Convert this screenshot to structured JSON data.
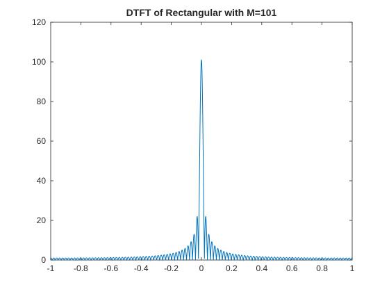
{
  "chart_data": {
    "type": "line",
    "title": "DTFT of Rectangular with M=101",
    "xlabel": "",
    "ylabel": "",
    "xlim": [
      -1,
      1
    ],
    "ylim": [
      0,
      120
    ],
    "xticks": [
      -1,
      -0.8,
      -0.6,
      -0.4,
      -0.2,
      0,
      0.2,
      0.4,
      0.6,
      0.8,
      1
    ],
    "xtick_labels": [
      "-1",
      "-0.8",
      "-0.6",
      "-0.4",
      "-0.2",
      "0",
      "0.2",
      "0.4",
      "0.6",
      "0.8",
      "1"
    ],
    "yticks": [
      0,
      20,
      40,
      60,
      80,
      100,
      120
    ],
    "ytick_labels": [
      "0",
      "20",
      "40",
      "60",
      "80",
      "100",
      "120"
    ],
    "grid": false,
    "series": [
      {
        "color": "#0072BD",
        "function": "abs(sin(pi*M*x/2)/sin(pi*x/2))",
        "M": 101,
        "peak": {
          "x": 0,
          "y": 101
        },
        "first_sidelobes": [
          {
            "x": -0.0297,
            "y": 21.7
          },
          {
            "x": 0.0297,
            "y": 21.7
          }
        ],
        "endpoint_value": {
          "x": 1,
          "y": 1
        }
      }
    ]
  }
}
